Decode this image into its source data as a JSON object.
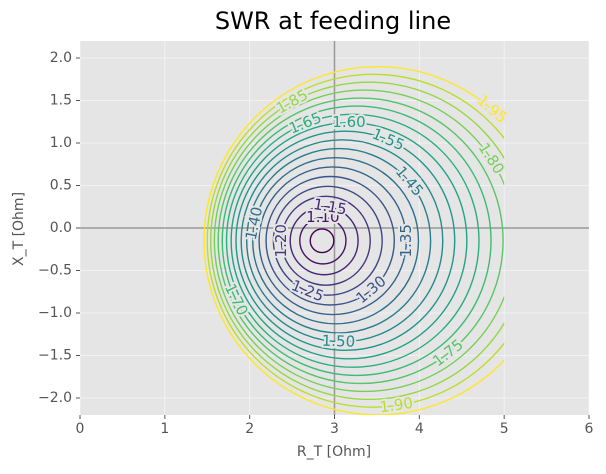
{
  "chart_data": {
    "type": "contour",
    "title": "SWR at feeding line",
    "xlabel": "R_T [Ohm]",
    "ylabel": "X_T [Ohm]",
    "xlim": [
      0,
      6
    ],
    "ylim": [
      -2.2,
      2.2
    ],
    "data_xlim": [
      0,
      5
    ],
    "xticks": [
      0,
      1,
      2,
      3,
      4,
      5,
      6
    ],
    "yticks": [
      {
        "value": -2.0,
        "label": "−2.0"
      },
      {
        "value": -1.5,
        "label": "−1.5"
      },
      {
        "value": -1.0,
        "label": "−1.0"
      },
      {
        "value": -0.5,
        "label": "−0.5"
      },
      {
        "value": 0,
        "label": "0.0"
      },
      {
        "value": 0.5,
        "label": "0.5"
      },
      {
        "value": 1.0,
        "label": "1.0"
      },
      {
        "value": 1.5,
        "label": "1.5"
      },
      {
        "value": 2.0,
        "label": "2.0"
      }
    ],
    "axhline": 0,
    "axvline": 3,
    "grid": true,
    "contours": [
      {
        "level": 1.05,
        "label": null,
        "center": [
          2.853,
          -0.15
        ],
        "radius": 0.139,
        "color": "#440154"
      },
      {
        "level": 1.1,
        "label": "1.10",
        "center": [
          2.863,
          -0.15
        ],
        "radius": 0.272,
        "color": "#481467"
      },
      {
        "level": 1.15,
        "label": "1.15",
        "center": [
          2.878,
          -0.15
        ],
        "radius": 0.4,
        "color": "#482576"
      },
      {
        "level": 1.2,
        "label": "1.20",
        "center": [
          2.898,
          -0.15
        ],
        "radius": 0.523,
        "color": "#453781"
      },
      {
        "level": 1.25,
        "label": "1.25",
        "center": [
          2.921,
          -0.15
        ],
        "radius": 0.641,
        "color": "#404688"
      },
      {
        "level": 1.3,
        "label": "1.30",
        "center": [
          2.949,
          -0.15
        ],
        "radius": 0.756,
        "color": "#39558c"
      },
      {
        "level": 1.35,
        "label": "1.35",
        "center": [
          2.979,
          -0.15
        ],
        "radius": 0.868,
        "color": "#33638d"
      },
      {
        "level": 1.4,
        "label": "1.40",
        "center": [
          3.013,
          -0.15
        ],
        "radius": 0.977,
        "color": "#2d718e"
      },
      {
        "level": 1.45,
        "label": "1.45",
        "center": [
          3.049,
          -0.15
        ],
        "radius": 1.084,
        "color": "#287d8e"
      },
      {
        "level": 1.5,
        "label": "1.50",
        "center": [
          3.088,
          -0.15
        ],
        "radius": 1.188,
        "color": "#238a8d"
      },
      {
        "level": 1.55,
        "label": "1.55",
        "center": [
          3.128,
          -0.15
        ],
        "radius": 1.289,
        "color": "#1f968b"
      },
      {
        "level": 1.6,
        "label": "1.60",
        "center": [
          3.171,
          -0.15
        ],
        "radius": 1.389,
        "color": "#20a386"
      },
      {
        "level": 1.65,
        "label": "1.65",
        "center": [
          3.215,
          -0.15
        ],
        "radius": 1.488,
        "color": "#29af7f"
      },
      {
        "level": 1.7,
        "label": "1.70",
        "center": [
          3.261,
          -0.15
        ],
        "radius": 1.584,
        "color": "#3dbc74"
      },
      {
        "level": 1.75,
        "label": "1.75",
        "center": [
          3.308,
          -0.15
        ],
        "radius": 1.679,
        "color": "#56c667"
      },
      {
        "level": 1.8,
        "label": "1.80",
        "center": [
          3.357,
          -0.15
        ],
        "radius": 1.773,
        "color": "#75d054"
      },
      {
        "level": 1.85,
        "label": "1.85",
        "center": [
          3.407,
          -0.15
        ],
        "radius": 1.866,
        "color": "#95d840"
      },
      {
        "level": 1.9,
        "label": "1.90",
        "center": [
          3.458,
          -0.15
        ],
        "radius": 1.958,
        "color": "#bade28"
      },
      {
        "level": 1.95,
        "label": "1.95",
        "center": [
          3.51,
          -0.15
        ],
        "radius": 2.048,
        "color": "#fde725"
      }
    ]
  }
}
